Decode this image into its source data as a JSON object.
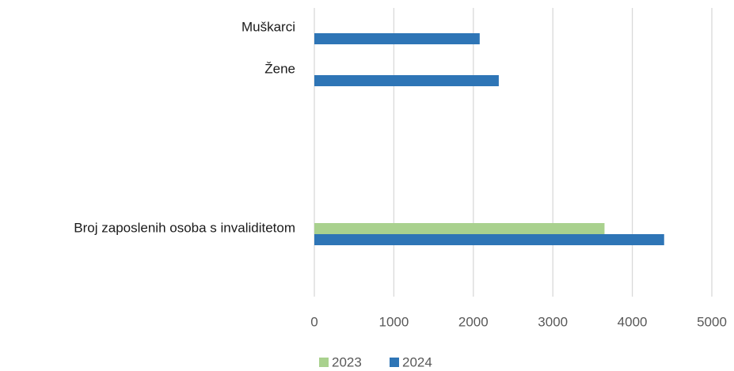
{
  "chart_data": {
    "type": "bar",
    "orientation": "horizontal",
    "categories": [
      "Muškarci",
      "Žene",
      "Broj zaposlenih osoba s invaliditetom"
    ],
    "series": [
      {
        "name": "2023",
        "color": "#a9d18e",
        "values": [
          null,
          null,
          3650
        ]
      },
      {
        "name": "2024",
        "color": "#2e75b6",
        "values": [
          2080,
          2320,
          4400
        ]
      }
    ],
    "xlim": [
      0,
      5000
    ],
    "xticks": [
      0,
      1000,
      2000,
      3000,
      4000,
      5000
    ],
    "grid": true,
    "legend": "bottom"
  }
}
